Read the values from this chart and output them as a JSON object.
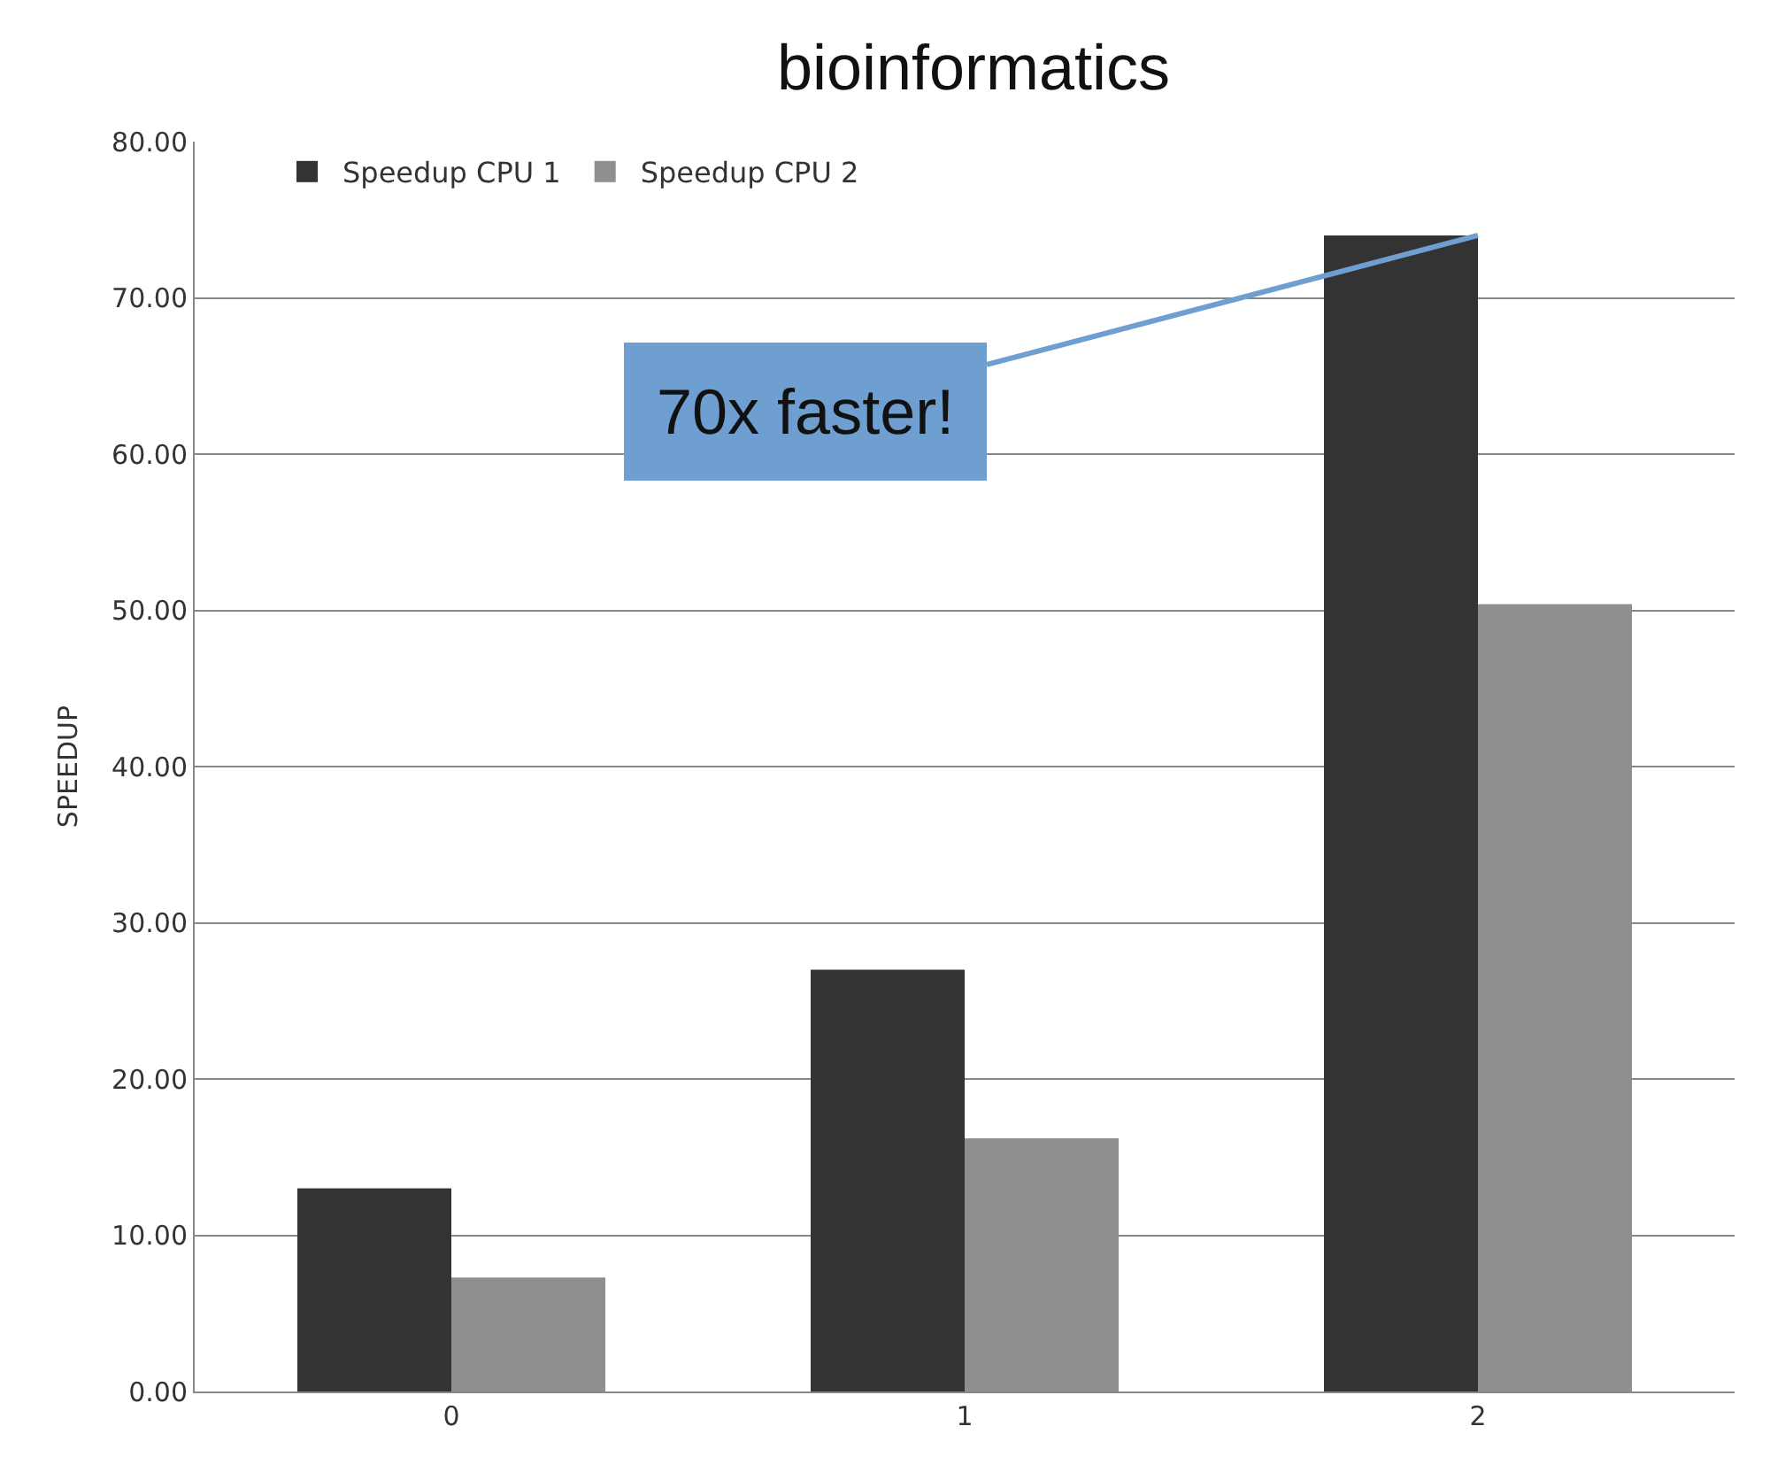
{
  "chart_data": {
    "type": "bar",
    "title": "bioinformatics",
    "ylabel": "SPEEDUP",
    "categories": [
      "0",
      "1",
      "2"
    ],
    "series": [
      {
        "name": "Speedup CPU 1",
        "color": "#333333",
        "values": [
          13.0,
          27.0,
          74.0
        ]
      },
      {
        "name": "Speedup CPU 2",
        "color": "#8f8f8f",
        "values": [
          7.3,
          16.2,
          50.4
        ]
      }
    ],
    "ylim": [
      0,
      80
    ],
    "yticks": [
      {
        "value": 0,
        "label": "0.00"
      },
      {
        "value": 10,
        "label": "10.00"
      },
      {
        "value": 20,
        "label": "20.00"
      },
      {
        "value": 30,
        "label": "30.00"
      },
      {
        "value": 40,
        "label": "40.00"
      },
      {
        "value": 50,
        "label": "50.00"
      },
      {
        "value": 60,
        "label": "60.00"
      },
      {
        "value": 70,
        "label": "70.00"
      },
      {
        "value": 80,
        "label": "80.00"
      }
    ],
    "grid": "y",
    "legend": "top left",
    "annotations": [
      {
        "text": "70x faster!",
        "x": "2",
        "y": 74
      }
    ]
  }
}
